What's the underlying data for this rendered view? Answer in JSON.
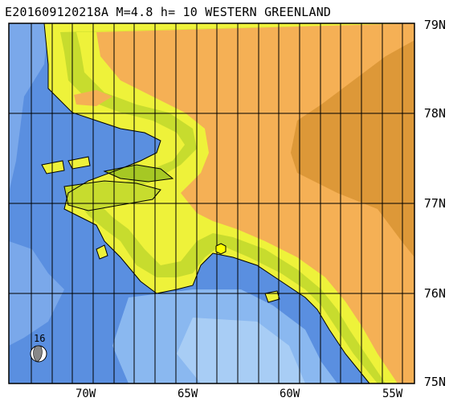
{
  "title": "E201609120218A M=4.8 h= 10 WESTERN GREENLAND",
  "lat_labels": [
    "79N",
    "78N",
    "77N",
    "76N",
    "75N"
  ],
  "lon_labels": [
    "70W",
    "65W",
    "60W",
    "55W"
  ],
  "beachball_depth": "16",
  "colors": {
    "deep_ocean": "#5a8fe0",
    "shallow_ocean": "#8ab8f0",
    "lowland": "#eef23a",
    "upland": "#c7dc2e",
    "highland": "#a6c824",
    "ice": "#f5b055",
    "dark_ice": "#dd9838",
    "epicenter": "#ffff00",
    "grid": "#000000"
  },
  "icons": [
    "epicenter-hexagon-icon",
    "beachball-icon"
  ]
}
